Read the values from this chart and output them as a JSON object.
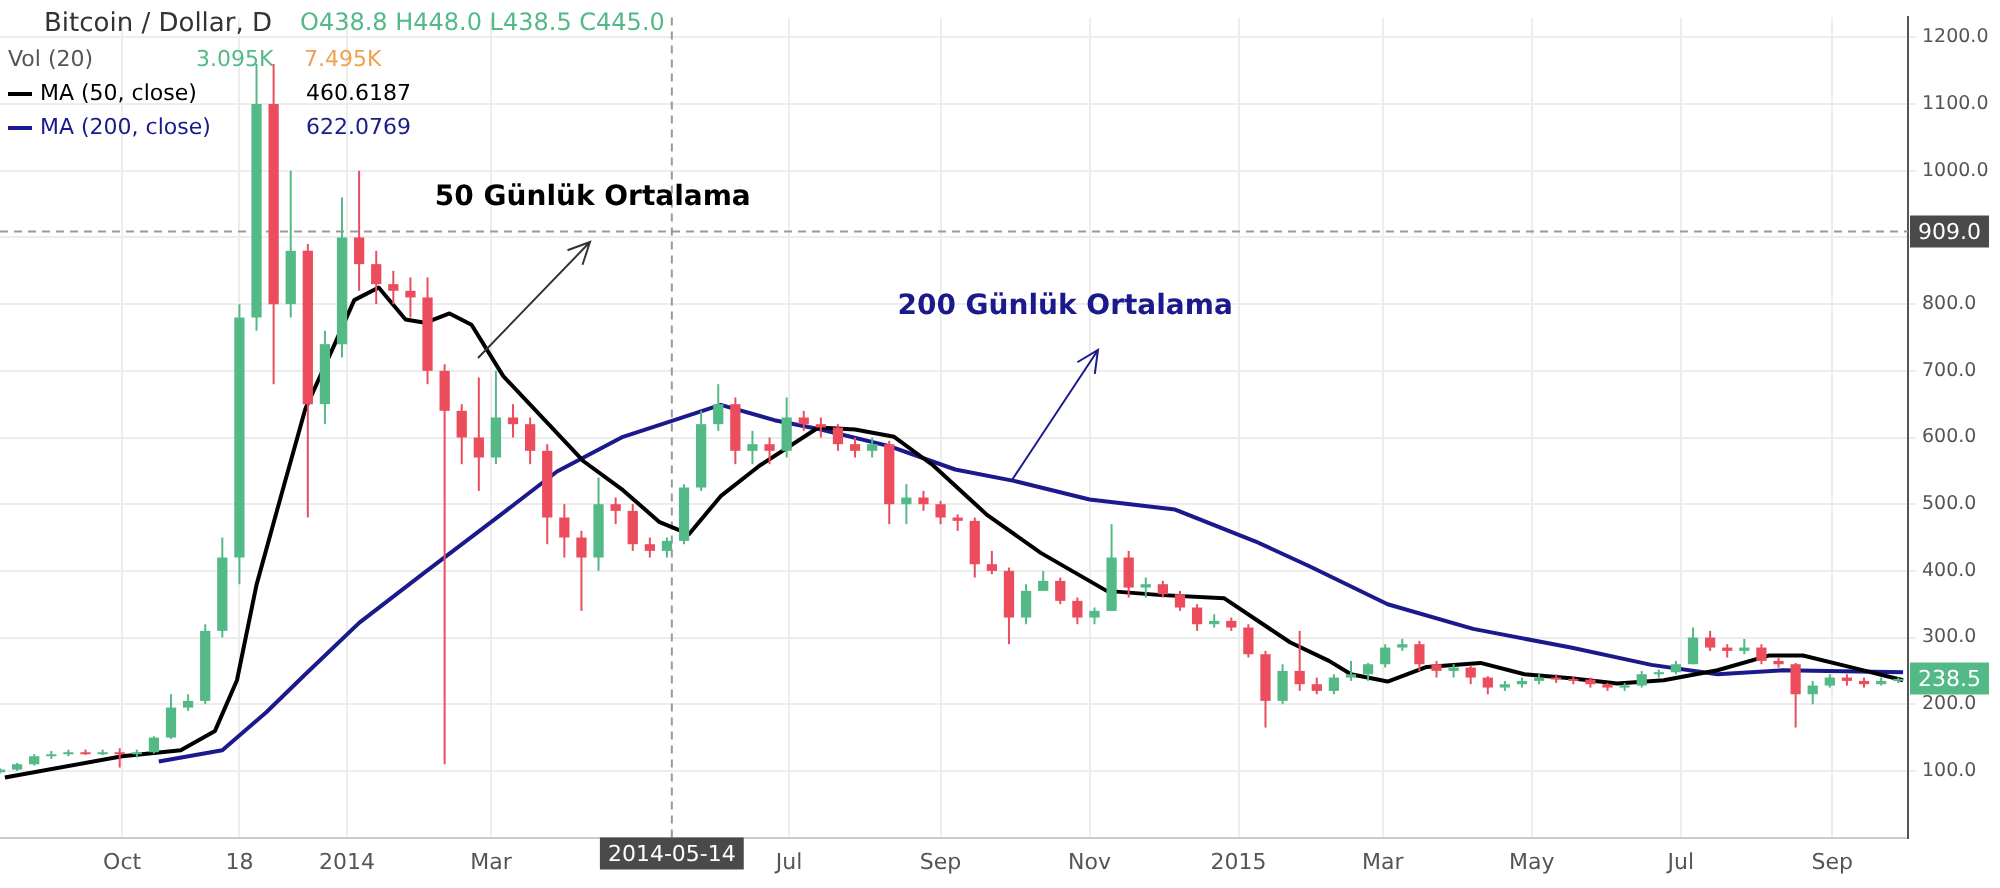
{
  "chart_data": {
    "type": "candlestick",
    "title": "Bitcoin / Dollar, D",
    "x": [
      "2013-08-12",
      "2013-08-19",
      "2013-08-26",
      "2013-09-02",
      "2013-09-09",
      "2013-09-16",
      "2013-09-23",
      "2013-09-30",
      "2013-10-07",
      "2013-10-14",
      "2013-10-21",
      "2013-10-28",
      "2013-11-04",
      "2013-11-11",
      "2013-11-18",
      "2013-11-25",
      "2013-12-02",
      "2013-12-09",
      "2013-12-16",
      "2013-12-23",
      "2013-12-30",
      "2014-01-06",
      "2014-01-13",
      "2014-01-20",
      "2014-01-27",
      "2014-02-03",
      "2014-02-10",
      "2014-02-17",
      "2014-02-24",
      "2014-03-03",
      "2014-03-10",
      "2014-03-17",
      "2014-03-24",
      "2014-03-31",
      "2014-04-07",
      "2014-04-14",
      "2014-04-21",
      "2014-04-28",
      "2014-05-05",
      "2014-05-12",
      "2014-05-19",
      "2014-05-26",
      "2014-06-02",
      "2014-06-09",
      "2014-06-16",
      "2014-06-23",
      "2014-06-30",
      "2014-07-07",
      "2014-07-14",
      "2014-07-21",
      "2014-07-28",
      "2014-08-04",
      "2014-08-11",
      "2014-08-18",
      "2014-08-25",
      "2014-09-01",
      "2014-09-08",
      "2014-09-15",
      "2014-09-22",
      "2014-09-29",
      "2014-10-06",
      "2014-10-13",
      "2014-10-20",
      "2014-10-27",
      "2014-11-03",
      "2014-11-10",
      "2014-11-17",
      "2014-11-24",
      "2014-12-01",
      "2014-12-08",
      "2014-12-15",
      "2014-12-22",
      "2014-12-29",
      "2015-01-05",
      "2015-01-12",
      "2015-01-19",
      "2015-01-26",
      "2015-02-02",
      "2015-02-09",
      "2015-02-16",
      "2015-02-23",
      "2015-03-02",
      "2015-03-09",
      "2015-03-16",
      "2015-03-23",
      "2015-03-30",
      "2015-04-06",
      "2015-04-13",
      "2015-04-20",
      "2015-04-27",
      "2015-05-04",
      "2015-05-11",
      "2015-05-18",
      "2015-05-25",
      "2015-06-01",
      "2015-06-08",
      "2015-06-15",
      "2015-06-22",
      "2015-06-29",
      "2015-07-06",
      "2015-07-13",
      "2015-07-20",
      "2015-07-27",
      "2015-08-03",
      "2015-08-10",
      "2015-08-17",
      "2015-08-24",
      "2015-08-31",
      "2015-09-07",
      "2015-09-14",
      "2015-09-21",
      "2015-09-28"
    ],
    "ohlc": [
      [
        98,
        104,
        96,
        102
      ],
      [
        102,
        112,
        100,
        110
      ],
      [
        110,
        125,
        108,
        122
      ],
      [
        122,
        130,
        118,
        125
      ],
      [
        125,
        132,
        122,
        128
      ],
      [
        128,
        132,
        124,
        127
      ],
      [
        127,
        132,
        124,
        128
      ],
      [
        128,
        134,
        105,
        125
      ],
      [
        125,
        132,
        120,
        128
      ],
      [
        128,
        152,
        126,
        150
      ],
      [
        150,
        215,
        148,
        195
      ],
      [
        195,
        215,
        190,
        205
      ],
      [
        205,
        320,
        200,
        310
      ],
      [
        310,
        450,
        300,
        420
      ],
      [
        420,
        800,
        380,
        780
      ],
      [
        780,
        1160,
        760,
        1100
      ],
      [
        1100,
        1160,
        680,
        800
      ],
      [
        800,
        1000,
        780,
        880
      ],
      [
        880,
        890,
        480,
        650
      ],
      [
        650,
        760,
        620,
        740
      ],
      [
        740,
        960,
        720,
        900
      ],
      [
        900,
        1000,
        820,
        860
      ],
      [
        860,
        880,
        800,
        830
      ],
      [
        830,
        850,
        800,
        820
      ],
      [
        820,
        840,
        780,
        810
      ],
      [
        810,
        840,
        680,
        700
      ],
      [
        700,
        710,
        110,
        640
      ],
      [
        640,
        650,
        560,
        600
      ],
      [
        600,
        690,
        520,
        570
      ],
      [
        570,
        700,
        560,
        630
      ],
      [
        630,
        650,
        600,
        620
      ],
      [
        620,
        630,
        560,
        580
      ],
      [
        580,
        590,
        440,
        480
      ],
      [
        480,
        500,
        420,
        450
      ],
      [
        450,
        460,
        340,
        420
      ],
      [
        420,
        540,
        400,
        500
      ],
      [
        500,
        510,
        470,
        490
      ],
      [
        490,
        500,
        430,
        440
      ],
      [
        440,
        450,
        420,
        430
      ],
      [
        430,
        450,
        420,
        445
      ],
      [
        445,
        530,
        440,
        525
      ],
      [
        525,
        640,
        520,
        620
      ],
      [
        620,
        680,
        610,
        650
      ],
      [
        650,
        660,
        560,
        580
      ],
      [
        580,
        610,
        560,
        590
      ],
      [
        590,
        600,
        560,
        580
      ],
      [
        580,
        660,
        570,
        630
      ],
      [
        630,
        640,
        610,
        620
      ],
      [
        620,
        630,
        600,
        615
      ],
      [
        615,
        620,
        580,
        590
      ],
      [
        590,
        600,
        570,
        580
      ],
      [
        580,
        600,
        570,
        590
      ],
      [
        590,
        595,
        470,
        500
      ],
      [
        500,
        530,
        470,
        510
      ],
      [
        510,
        520,
        490,
        500
      ],
      [
        500,
        505,
        470,
        480
      ],
      [
        480,
        485,
        460,
        475
      ],
      [
        475,
        480,
        390,
        410
      ],
      [
        410,
        430,
        395,
        400
      ],
      [
        400,
        405,
        290,
        330
      ],
      [
        330,
        380,
        320,
        370
      ],
      [
        370,
        400,
        370,
        385
      ],
      [
        385,
        390,
        350,
        355
      ],
      [
        355,
        360,
        320,
        330
      ],
      [
        330,
        345,
        320,
        340
      ],
      [
        340,
        470,
        340,
        420
      ],
      [
        420,
        430,
        360,
        375
      ],
      [
        375,
        390,
        360,
        380
      ],
      [
        380,
        385,
        360,
        365
      ],
      [
        365,
        370,
        340,
        345
      ],
      [
        345,
        350,
        310,
        320
      ],
      [
        320,
        335,
        315,
        325
      ],
      [
        325,
        330,
        310,
        315
      ],
      [
        315,
        320,
        270,
        275
      ],
      [
        275,
        280,
        165,
        205
      ],
      [
        205,
        260,
        200,
        250
      ],
      [
        250,
        310,
        220,
        230
      ],
      [
        230,
        240,
        215,
        220
      ],
      [
        220,
        245,
        215,
        240
      ],
      [
        240,
        265,
        235,
        245
      ],
      [
        245,
        262,
        235,
        260
      ],
      [
        260,
        290,
        255,
        285
      ],
      [
        285,
        298,
        280,
        290
      ],
      [
        290,
        295,
        250,
        260
      ],
      [
        260,
        265,
        240,
        250
      ],
      [
        250,
        260,
        240,
        255
      ],
      [
        255,
        258,
        230,
        240
      ],
      [
        240,
        242,
        215,
        225
      ],
      [
        225,
        235,
        220,
        230
      ],
      [
        230,
        240,
        225,
        235
      ],
      [
        235,
        245,
        230,
        240
      ],
      [
        240,
        245,
        232,
        238
      ],
      [
        238,
        242,
        230,
        237
      ],
      [
        237,
        240,
        225,
        230
      ],
      [
        230,
        232,
        220,
        225
      ],
      [
        225,
        232,
        220,
        228
      ],
      [
        228,
        250,
        225,
        245
      ],
      [
        245,
        252,
        240,
        248
      ],
      [
        248,
        265,
        245,
        260
      ],
      [
        260,
        315,
        260,
        300
      ],
      [
        300,
        310,
        280,
        285
      ],
      [
        285,
        290,
        270,
        280
      ],
      [
        280,
        298,
        275,
        285
      ],
      [
        285,
        290,
        260,
        265
      ],
      [
        265,
        270,
        255,
        260
      ],
      [
        260,
        262,
        165,
        215
      ],
      [
        215,
        235,
        200,
        228
      ],
      [
        228,
        245,
        225,
        240
      ],
      [
        240,
        245,
        228,
        235
      ],
      [
        235,
        240,
        225,
        230
      ],
      [
        230,
        240,
        228,
        235
      ],
      [
        235,
        240,
        232,
        238
      ]
    ],
    "series": [
      {
        "name": "MA (50, close)",
        "type": "line",
        "color": "#000000",
        "x": [
          "2013-08-14",
          "2013-10-01",
          "2013-10-25",
          "2013-11-08",
          "2013-11-17",
          "2013-11-25",
          "2013-12-05",
          "2013-12-15",
          "2013-12-27",
          "2014-01-04",
          "2014-01-14",
          "2014-01-25",
          "2014-02-02",
          "2014-02-12",
          "2014-02-21",
          "2014-03-06",
          "2014-03-23",
          "2014-04-08",
          "2014-04-24",
          "2014-05-09",
          "2014-05-21",
          "2014-06-03",
          "2014-06-19",
          "2014-07-13",
          "2014-07-28",
          "2014-08-13",
          "2014-08-29",
          "2014-09-20",
          "2014-10-12",
          "2014-11-08",
          "2014-11-29",
          "2014-12-26",
          "2015-01-22",
          "2015-02-07",
          "2015-02-16",
          "2015-03-03",
          "2015-03-19",
          "2015-04-10",
          "2015-04-28",
          "2015-05-17",
          "2015-06-05",
          "2015-06-24",
          "2015-07-16",
          "2015-08-06",
          "2015-08-20",
          "2015-09-08",
          "2015-09-30"
        ],
        "values": [
          90,
          122,
          131,
          160,
          236,
          379,
          512,
          643,
          740,
          806,
          825,
          777,
          772,
          786,
          769,
          692,
          626,
          564,
          521,
          473,
          455,
          512,
          558,
          615,
          612,
          601,
          558,
          484,
          427,
          370,
          364,
          359,
          293,
          265,
          245,
          234,
          256,
          262,
          245,
          239,
          231,
          236,
          251,
          273,
          273,
          256,
          236
        ]
      },
      {
        "name": "MA (200, close)",
        "type": "line",
        "color": "#1a1a8c",
        "x": [
          "2013-10-16",
          "2013-11-11",
          "2013-11-29",
          "2013-12-15",
          "2014-01-06",
          "2014-02-02",
          "2014-03-01",
          "2014-03-28",
          "2014-04-24",
          "2014-05-15",
          "2014-06-03",
          "2014-06-25",
          "2014-07-14",
          "2014-08-11",
          "2014-09-07",
          "2014-10-01",
          "2014-11-01",
          "2014-12-06",
          "2015-01-08",
          "2015-01-30",
          "2015-03-03",
          "2015-04-07",
          "2015-05-17",
          "2015-06-19",
          "2015-07-16",
          "2015-08-12",
          "2015-09-30"
        ],
        "values": [
          114,
          131,
          188,
          245,
          322,
          398,
          473,
          549,
          601,
          626,
          649,
          626,
          612,
          587,
          552,
          535,
          507,
          492,
          444,
          407,
          350,
          313,
          285,
          259,
          245,
          251,
          248
        ]
      }
    ],
    "xlim": [
      "2013-08-12",
      "2015-10-02"
    ],
    "xticks": [
      {
        "value": "2013-10-01",
        "label": "Oct"
      },
      {
        "value": "2013-11-18",
        "label": "18"
      },
      {
        "value": "2014-01-01",
        "label": "2014"
      },
      {
        "value": "2014-03-01",
        "label": "Mar"
      },
      {
        "value": "2014-07-01",
        "label": "Jul"
      },
      {
        "value": "2014-09-01",
        "label": "Sep"
      },
      {
        "value": "2014-11-01",
        "label": "Nov"
      },
      {
        "value": "2015-01-01",
        "label": "2015"
      },
      {
        "value": "2015-03-01",
        "label": "Mar"
      },
      {
        "value": "2015-05-01",
        "label": "May"
      },
      {
        "value": "2015-07-01",
        "label": "Jul"
      },
      {
        "value": "2015-09-01",
        "label": "Sep"
      }
    ],
    "ylim": [
      0,
      1230
    ],
    "yticks": [
      {
        "value": 100,
        "label": "100.0"
      },
      {
        "value": 200,
        "label": "200.0"
      },
      {
        "value": 300,
        "label": "300.0"
      },
      {
        "value": 400,
        "label": "400.0"
      },
      {
        "value": 500,
        "label": "500.0"
      },
      {
        "value": 600,
        "label": "600.0"
      },
      {
        "value": 700,
        "label": "700.0"
      },
      {
        "value": 800,
        "label": "800.0"
      },
      {
        "value": 900,
        "label": null
      },
      {
        "value": 1000,
        "label": "1000.0"
      },
      {
        "value": 1100,
        "label": "1100.0"
      },
      {
        "value": 1200,
        "label": "1200.0"
      }
    ],
    "ref_lines": [
      {
        "axis": "y",
        "value": 909,
        "label": "909.0",
        "color": "#999999",
        "line_style": "dashed"
      },
      {
        "axis": "x",
        "value": "2014-05-14",
        "label": "2014-05-14",
        "color": "#999999",
        "line_style": "dashed"
      }
    ],
    "annotations": [
      "O438.8 H448.0 L438.5 C445.0",
      "Vol (20)",
      "3.095K",
      "7.495K",
      "460.6187",
      "622.0769",
      {
        "text": "50 Günlük Ortalama",
        "x": "2014-02-24",
        "y": 720
      },
      {
        "text": "200 Günlük Ortalama",
        "x": "2014-09-30",
        "y": 535
      },
      {
        "text": "238.5",
        "y": 238.5
      }
    ],
    "grid": true,
    "legend": "top left",
    "marker": "none",
    "line_style": "solid"
  }
}
